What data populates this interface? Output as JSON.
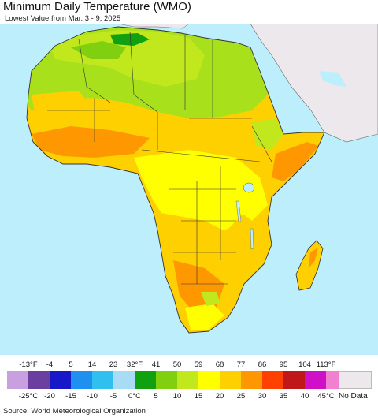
{
  "title": "Minimum Daily Temperature (WMO)",
  "subtitle": "Lowest Value from Mar. 3 - 9, 2025",
  "source": "Source: World Meteorological Organization",
  "legend": {
    "fahrenheit_ticks": [
      "-13°F",
      "-4",
      "5",
      "14",
      "23",
      "32°F",
      "41",
      "50",
      "59",
      "68",
      "77",
      "86",
      "95",
      "104",
      "113°F"
    ],
    "celsius_ticks": [
      "-25°C",
      "-20",
      "-15",
      "-10",
      "-5",
      "0°C",
      "5",
      "10",
      "15",
      "20",
      "25",
      "30",
      "35",
      "40",
      "45°C"
    ],
    "colors": [
      "#c8a0e0",
      "#6a3fa0",
      "#1818c8",
      "#2090f0",
      "#30c0f0",
      "#a8dcf4",
      "#10a010",
      "#80d010",
      "#c0e81c",
      "#ffff00",
      "#ffd000",
      "#ff9800",
      "#ff4000",
      "#c01818",
      "#d010c8",
      "#f080d0"
    ],
    "no_data_label": "No Data",
    "no_data_color": "#ece8ec"
  },
  "map": {
    "ocean_color": "#bdeefb",
    "non_data_land_color": "#ece8ec"
  }
}
